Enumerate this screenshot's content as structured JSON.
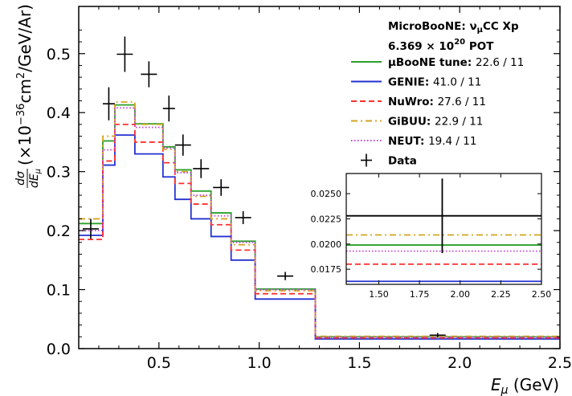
{
  "chart_data": {
    "type": "line",
    "xlabel": "E_μ (GeV)",
    "ylabel": "dσ/dE_μ (×10^-36 cm^2/GeV/Ar)",
    "xlim": [
      0.1,
      2.5
    ],
    "ylim": [
      0.0,
      0.58
    ],
    "x_ticks": [
      "0.5",
      "1.0",
      "1.5",
      "2.0",
      "2.5"
    ],
    "y_ticks": [
      "0.0",
      "0.1",
      "0.2",
      "0.3",
      "0.4",
      "0.5"
    ],
    "legend_header": [
      "MicroBooNE: ν_μCC Xp",
      "6.369 × 10^20 POT"
    ],
    "legend_placement": "top-right",
    "bin_edges": [
      0.1,
      0.22,
      0.28,
      0.38,
      0.52,
      0.58,
      0.66,
      0.76,
      0.86,
      0.98,
      1.28,
      2.5
    ],
    "series": [
      {
        "name": "μBooNE tune",
        "chi2": "22.6 / 11",
        "color": "#2ca02c",
        "style": "solid",
        "values": [
          0.212,
          0.352,
          0.413,
          0.381,
          0.342,
          0.303,
          0.267,
          0.23,
          0.182,
          0.101,
          0.0199
        ]
      },
      {
        "name": "GENIE",
        "chi2": "41.0 / 11",
        "color": "#2430d0",
        "style": "solid",
        "values": [
          0.192,
          0.311,
          0.362,
          0.33,
          0.291,
          0.253,
          0.22,
          0.19,
          0.15,
          0.084,
          0.0163
        ]
      },
      {
        "name": "NuWro",
        "chi2": "27.6 / 11",
        "color": "#ff3030",
        "style": "dashed",
        "values": [
          0.185,
          0.318,
          0.38,
          0.35,
          0.315,
          0.28,
          0.245,
          0.21,
          0.167,
          0.093,
          0.018
        ]
      },
      {
        "name": "GiBUU",
        "chi2": "22.9 / 11",
        "color": "#d4a520",
        "style": "dashdot",
        "values": [
          0.22,
          0.36,
          0.418,
          0.38,
          0.338,
          0.3,
          0.258,
          0.22,
          0.176,
          0.098,
          0.0209
        ]
      },
      {
        "name": "NEUT",
        "chi2": "19.4 / 11",
        "color": "#c040e0",
        "style": "dotted",
        "values": [
          0.2,
          0.337,
          0.408,
          0.375,
          0.34,
          0.298,
          0.26,
          0.225,
          0.18,
          0.1,
          0.0193
        ]
      }
    ],
    "data": {
      "name": "Data",
      "x": [
        0.16,
        0.25,
        0.33,
        0.45,
        0.55,
        0.62,
        0.71,
        0.81,
        0.92,
        1.13,
        1.89
      ],
      "y": [
        0.203,
        0.415,
        0.499,
        0.465,
        0.407,
        0.345,
        0.305,
        0.273,
        0.222,
        0.123,
        0.0228
      ],
      "yerr": [
        0.017,
        0.028,
        0.03,
        0.022,
        0.022,
        0.018,
        0.016,
        0.014,
        0.011,
        0.007,
        0.0037
      ]
    },
    "inset": {
      "xlim": [
        1.3,
        2.5
      ],
      "ylim": [
        0.016,
        0.027
      ],
      "x_ticks": [
        "1.50",
        "1.75",
        "2.00",
        "2.25",
        "2.50"
      ],
      "y_ticks": [
        "0.0175",
        "0.0200",
        "0.0225",
        "0.0250"
      ]
    }
  }
}
